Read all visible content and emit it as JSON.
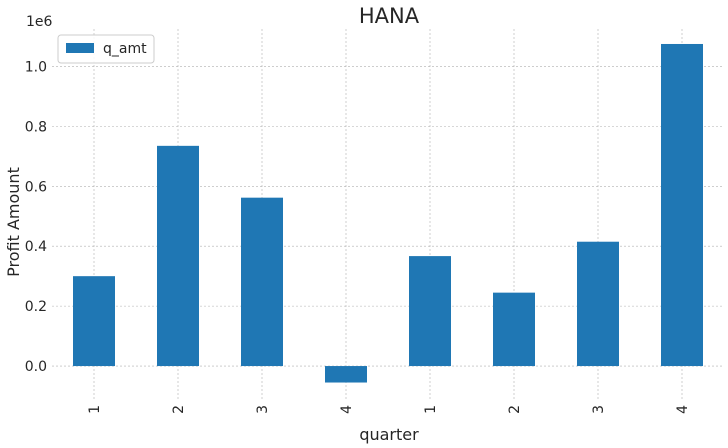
{
  "chart_data": {
    "type": "bar",
    "title": "HANA",
    "xlabel": "quarter",
    "ylabel": "Profit Amount",
    "y_offset_label": "1e6",
    "categories": [
      "1",
      "2",
      "3",
      "4",
      "1",
      "2",
      "3",
      "4"
    ],
    "series": [
      {
        "name": "q_amt",
        "color": "#1f77b4",
        "values": [
          300000,
          735000,
          562000,
          -55000,
          367000,
          245000,
          415000,
          1075000
        ]
      }
    ],
    "ylim": [
      -110000,
      1125000
    ],
    "yticks": [
      0.0,
      0.2,
      0.4,
      0.6,
      0.8,
      1.0
    ],
    "ytick_labels": [
      "0.0",
      "0.2",
      "0.4",
      "0.6",
      "0.8",
      "1.0"
    ],
    "grid": true,
    "legend_position": "top-left"
  }
}
